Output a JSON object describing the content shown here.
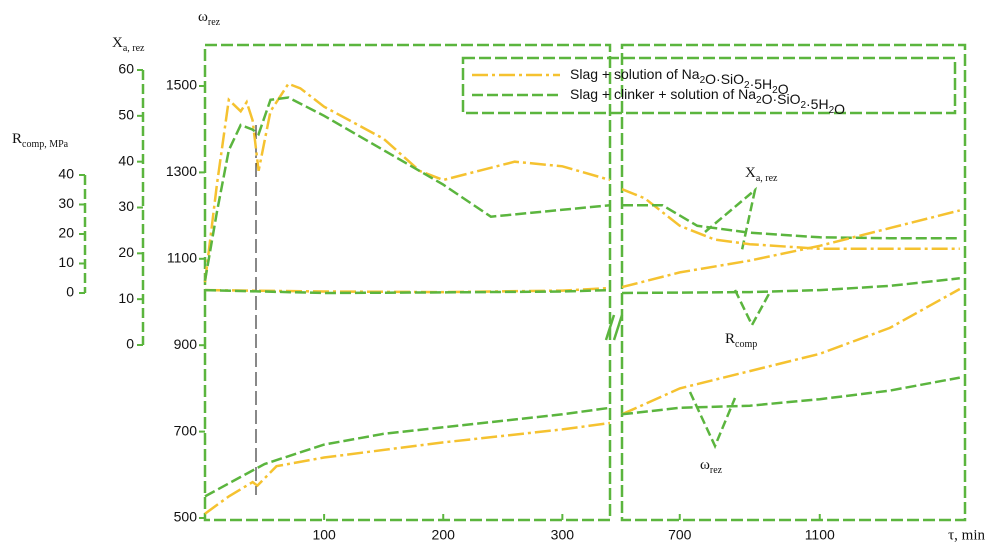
{
  "chart_data": {
    "type": "line",
    "xlabel": "τ, min",
    "xpanels": [
      {
        "xlim": [
          0,
          340
        ],
        "xticks": [
          100,
          200,
          300
        ]
      },
      {
        "xlim": [
          535,
          1515
        ],
        "xticks": [
          700,
          1100
        ]
      }
    ],
    "ylabel": {
      "text": "ω",
      "sub": "rez"
    },
    "ylim": [
      500,
      1500
    ],
    "yticks": [
      500,
      700,
      900,
      1100,
      1300,
      1500
    ],
    "y2label": {
      "text": "X",
      "sub": "a, rez"
    },
    "y2lim": [
      0,
      60
    ],
    "y2ticks": [
      0,
      10,
      20,
      30,
      40,
      50,
      60
    ],
    "y3label": {
      "text": "R",
      "sub": "comp, MPa"
    },
    "y3lim": [
      0,
      40
    ],
    "y3ticks": [
      0,
      10,
      20,
      30,
      40
    ],
    "legend": [
      {
        "color": "#f5c230",
        "label": [
          {
            "text": "Slag + solution of  Na"
          },
          {
            "sub": "2"
          },
          {
            "text": "O·SiO"
          },
          {
            "sub": "2"
          },
          {
            "text": "·5H"
          },
          {
            "sub": "2"
          },
          {
            "text": "O"
          }
        ]
      },
      {
        "color": "#5bb53e",
        "label": [
          {
            "text": "Slag + clinker + solution of  Na"
          },
          {
            "sub": "2"
          },
          {
            "text": "O·SiO"
          },
          {
            "sub": "2"
          },
          {
            "text": "·5H"
          },
          {
            "sub": "2"
          },
          {
            "text": "O"
          }
        ]
      }
    ],
    "annotations": [
      {
        "text": "X",
        "sub": "a, rez"
      },
      {
        "text": "R",
        "sub": "comp"
      },
      {
        "text": "ω",
        "sub": "rez"
      }
    ],
    "series": [
      {
        "color": "#f5c230",
        "axis": "y2",
        "x": [
          0,
          10,
          20,
          30,
          35,
          40,
          45,
          55,
          70,
          80,
          100,
          150,
          180,
          200,
          230,
          260,
          300,
          340,
          535,
          600,
          700,
          800,
          900,
          1100,
          1300,
          1500
        ],
        "values": [
          13.7,
          35,
          53.5,
          51,
          53,
          49,
          38,
          51,
          57,
          56,
          52,
          45,
          38,
          36,
          38,
          40,
          39,
          36,
          34,
          32,
          26,
          23,
          22,
          21,
          21,
          21
        ]
      },
      {
        "color": "#5bb53e",
        "axis": "y2",
        "x": [
          0,
          10,
          20,
          30,
          40,
          45,
          55,
          70,
          100,
          150,
          200,
          240,
          300,
          340,
          535,
          650,
          750,
          900,
          1100,
          1300,
          1500
        ],
        "values": [
          14,
          29,
          42.5,
          48,
          47,
          46,
          53.5,
          54,
          50,
          42.5,
          35,
          28,
          29.5,
          30.5,
          30.5,
          30.5,
          26,
          24.5,
          23.5,
          23.3,
          23.3
        ]
      },
      {
        "color": "#f5c230",
        "axis": "y3",
        "x": [
          0,
          100,
          200,
          300,
          340,
          535,
          700,
          900,
          1100,
          1300,
          1500
        ],
        "values": [
          1,
          0.5,
          0.3,
          0.8,
          1.7,
          2,
          7,
          11,
          16,
          22,
          28
        ]
      },
      {
        "color": "#5bb53e",
        "axis": "y3",
        "x": [
          0,
          100,
          200,
          300,
          340,
          535,
          900,
          1100,
          1300,
          1500
        ],
        "values": [
          1,
          0,
          0.2,
          0.5,
          1,
          0,
          0.3,
          1,
          2.4,
          5
        ]
      },
      {
        "color": "#f5c230",
        "axis": "y",
        "x": [
          0,
          20,
          40,
          44,
          60,
          100,
          200,
          300,
          340,
          535,
          700,
          900,
          1100,
          1300,
          1500
        ],
        "values": [
          510,
          550,
          583,
          575,
          620,
          640,
          675,
          705,
          720,
          740,
          800,
          840,
          880,
          940,
          1030
        ]
      },
      {
        "color": "#5bb53e",
        "axis": "y",
        "x": [
          0,
          20,
          40,
          50,
          100,
          150,
          200,
          300,
          340,
          535,
          700,
          900,
          1100,
          1300,
          1500
        ],
        "values": [
          550,
          580,
          610,
          625,
          670,
          695,
          710,
          740,
          755,
          740,
          755,
          760,
          775,
          795,
          825
        ]
      }
    ]
  }
}
